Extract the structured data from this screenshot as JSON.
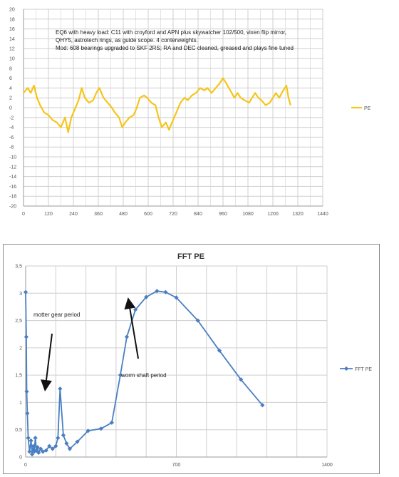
{
  "chart_data": [
    {
      "type": "line",
      "title": "",
      "xlabel": "",
      "ylabel": "",
      "xlim": [
        0,
        1440
      ],
      "ylim": [
        -20,
        20
      ],
      "xticks": [
        "0",
        "120",
        "240",
        "360",
        "480",
        "600",
        "720",
        "840",
        "960",
        "1080",
        "1200",
        "1320",
        "1440"
      ],
      "yticks": [
        "20",
        "18",
        "16",
        "14",
        "12",
        "10",
        "8",
        "6",
        "4",
        "2",
        "0",
        "-2",
        "-4",
        "-6",
        "-8",
        "-10",
        "-12",
        "-14",
        "-16",
        "-18",
        "-20"
      ],
      "grid": true,
      "legend_position": "right",
      "annotation_lines": [
        "EQ6 with heavy load: C11 with croyford and APN plus skywatcher 102/500, vixen flip mirror,",
        "QHY5, astrotech rings, as guide scope. 4 conterweights.",
        "Mod: 608 bearings upgraded to SKF 2RS; RA and DEC cleaned, greased and plays fine tuned"
      ],
      "series": [
        {
          "name": "PE",
          "color": "#f5c518",
          "points": [
            [
              0,
              3
            ],
            [
              20,
              4
            ],
            [
              35,
              3
            ],
            [
              50,
              4.5
            ],
            [
              65,
              2
            ],
            [
              80,
              0.5
            ],
            [
              100,
              -1
            ],
            [
              120,
              -1.5
            ],
            [
              140,
              -2.5
            ],
            [
              160,
              -3
            ],
            [
              180,
              -4
            ],
            [
              200,
              -2
            ],
            [
              215,
              -5
            ],
            [
              230,
              -2
            ],
            [
              250,
              0
            ],
            [
              265,
              1.5
            ],
            [
              280,
              4
            ],
            [
              295,
              2
            ],
            [
              315,
              1
            ],
            [
              335,
              1.5
            ],
            [
              350,
              3
            ],
            [
              365,
              4
            ],
            [
              385,
              2
            ],
            [
              405,
              1
            ],
            [
              425,
              0
            ],
            [
              440,
              -1
            ],
            [
              460,
              -2
            ],
            [
              475,
              -4
            ],
            [
              490,
              -3
            ],
            [
              510,
              -2
            ],
            [
              530,
              -1.5
            ],
            [
              545,
              0
            ],
            [
              560,
              2
            ],
            [
              580,
              2.5
            ],
            [
              595,
              2
            ],
            [
              615,
              1
            ],
            [
              635,
              0.5
            ],
            [
              650,
              -2
            ],
            [
              665,
              -4
            ],
            [
              685,
              -3
            ],
            [
              700,
              -4.5
            ],
            [
              715,
              -3
            ],
            [
              735,
              -1
            ],
            [
              755,
              1
            ],
            [
              775,
              2
            ],
            [
              790,
              1.5
            ],
            [
              810,
              2.5
            ],
            [
              830,
              3
            ],
            [
              850,
              4
            ],
            [
              870,
              3.5
            ],
            [
              885,
              4
            ],
            [
              905,
              3
            ],
            [
              925,
              4
            ],
            [
              945,
              5
            ],
            [
              960,
              6
            ],
            [
              975,
              5
            ],
            [
              995,
              3.5
            ],
            [
              1015,
              2
            ],
            [
              1030,
              3
            ],
            [
              1045,
              2
            ],
            [
              1065,
              1.5
            ],
            [
              1085,
              1
            ],
            [
              1100,
              2
            ],
            [
              1115,
              3
            ],
            [
              1130,
              2
            ],
            [
              1145,
              1.5
            ],
            [
              1165,
              0.5
            ],
            [
              1185,
              1
            ],
            [
              1200,
              2
            ],
            [
              1215,
              3
            ],
            [
              1230,
              2
            ],
            [
              1250,
              3.5
            ],
            [
              1265,
              4.5
            ],
            [
              1275,
              2
            ],
            [
              1285,
              0.5
            ]
          ]
        }
      ]
    },
    {
      "type": "scatter",
      "title": "FFT PE",
      "xlabel": "",
      "ylabel": "",
      "xlim": [
        0,
        1400
      ],
      "ylim": [
        0,
        3.5
      ],
      "xticks": [
        "0",
        "",
        "",
        "",
        "",
        "700",
        "",
        "",
        "",
        "",
        "1400"
      ],
      "yticks": [
        "3,5",
        "3",
        "2,5",
        "2",
        "1,5",
        "1",
        "0,5",
        "0"
      ],
      "grid": true,
      "legend_position": "right",
      "annotations": [
        "motter gear period",
        "worm shaft period"
      ],
      "series": [
        {
          "name": "FFT PE",
          "color": "#4a7fc1",
          "points": [
            [
              0,
              3.02
            ],
            [
              3,
              2.2
            ],
            [
              5,
              1.2
            ],
            [
              8,
              0.8
            ],
            [
              12,
              0.35
            ],
            [
              18,
              0.1
            ],
            [
              25,
              0.3
            ],
            [
              30,
              0.05
            ],
            [
              35,
              0.2
            ],
            [
              40,
              0.1
            ],
            [
              45,
              0.35
            ],
            [
              50,
              0.12
            ],
            [
              55,
              0.18
            ],
            [
              60,
              0.08
            ],
            [
              70,
              0.15
            ],
            [
              80,
              0.1
            ],
            [
              95,
              0.12
            ],
            [
              110,
              0.2
            ],
            [
              125,
              0.15
            ],
            [
              140,
              0.2
            ],
            [
              150,
              0.35
            ],
            [
              160,
              1.25
            ],
            [
              175,
              0.4
            ],
            [
              190,
              0.25
            ],
            [
              205,
              0.15
            ],
            [
              240,
              0.28
            ],
            [
              290,
              0.48
            ],
            [
              350,
              0.52
            ],
            [
              400,
              0.63
            ],
            [
              440,
              1.5
            ],
            [
              470,
              2.2
            ],
            [
              510,
              2.7
            ],
            [
              560,
              2.93
            ],
            [
              610,
              3.04
            ],
            [
              650,
              3.02
            ],
            [
              700,
              2.92
            ],
            [
              800,
              2.5
            ],
            [
              900,
              1.95
            ],
            [
              1000,
              1.42
            ],
            [
              1100,
              0.95
            ]
          ]
        }
      ]
    }
  ]
}
